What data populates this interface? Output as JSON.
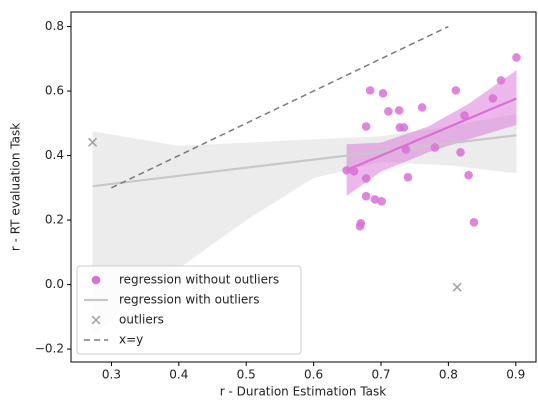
{
  "chart_data": {
    "type": "scatter",
    "x_label": "r - Duration Estimation Task",
    "y_label": "r - RT evaluation Task",
    "xlim": [
      0.24,
      0.93
    ],
    "ylim": [
      -0.24,
      0.845
    ],
    "xticks": [
      0.3,
      0.4,
      0.5,
      0.6,
      0.7,
      0.8,
      0.9
    ],
    "yticks": [
      {
        "value": -0.2,
        "label": "−0.2"
      },
      {
        "value": 0,
        "label": "0.0"
      },
      0.2,
      0.4,
      0.6,
      0.8
    ],
    "grid": false,
    "legend": "lower left",
    "series": [
      {
        "type": "scatter",
        "marker": "o",
        "name": "regression without outliers",
        "color": "#da70d6",
        "x": [
          0.649,
          0.66,
          0.678,
          0.678,
          0.684,
          0.703,
          0.711,
          0.727,
          0.728,
          0.734,
          0.737,
          0.74,
          0.761,
          0.78,
          0.811,
          0.818,
          0.824,
          0.83,
          0.838,
          0.866,
          0.878,
          0.901,
          0.678,
          0.691,
          0.701,
          0.67,
          0.669
        ],
        "values": [
          0.354,
          0.351,
          0.329,
          0.49,
          0.602,
          0.593,
          0.537,
          0.54,
          0.487,
          0.487,
          0.419,
          0.333,
          0.549,
          0.425,
          0.602,
          0.41,
          0.524,
          0.339,
          0.193,
          0.577,
          0.633,
          0.704,
          0.274,
          0.264,
          0.258,
          0.19,
          0.181
        ]
      },
      {
        "type": "line",
        "name": "regression with outliers",
        "color": "#c8c8c8",
        "dash": false,
        "x": [
          0.272,
          0.901
        ],
        "values": [
          0.305,
          0.463
        ]
      },
      {
        "type": "scatter",
        "marker": "x",
        "name": "outliers",
        "color": "#a0a0a0",
        "x": [
          0.272,
          0.813
        ],
        "values": [
          0.441,
          -0.008
        ]
      },
      {
        "type": "line",
        "name": "x=y",
        "color": "#7a7a7a",
        "dash": true,
        "x": [
          0.3,
          0.8
        ],
        "values": [
          0.3,
          0.8
        ]
      },
      {
        "type": "line",
        "color": "#da70d6",
        "dash": false,
        "x": [
          0.649,
          0.901
        ],
        "values": [
          0.355,
          0.577
        ]
      },
      {
        "type": "band",
        "color": "#d9d9d9",
        "x": [
          0.272,
          0.4,
          0.5,
          0.6,
          0.7,
          0.8,
          0.901
        ],
        "lower": [
          -0.157,
          0.05,
          0.2,
          0.33,
          0.38,
          0.37,
          0.345
        ],
        "upper": [
          0.475,
          0.43,
          0.44,
          0.45,
          0.46,
          0.49,
          0.53
        ]
      },
      {
        "type": "band",
        "color": "#da70d6",
        "x": [
          0.649,
          0.7,
          0.77,
          0.83,
          0.901
        ],
        "lower": [
          0.275,
          0.35,
          0.41,
          0.45,
          0.495
        ],
        "upper": [
          0.435,
          0.44,
          0.49,
          0.56,
          0.665
        ]
      }
    ]
  }
}
